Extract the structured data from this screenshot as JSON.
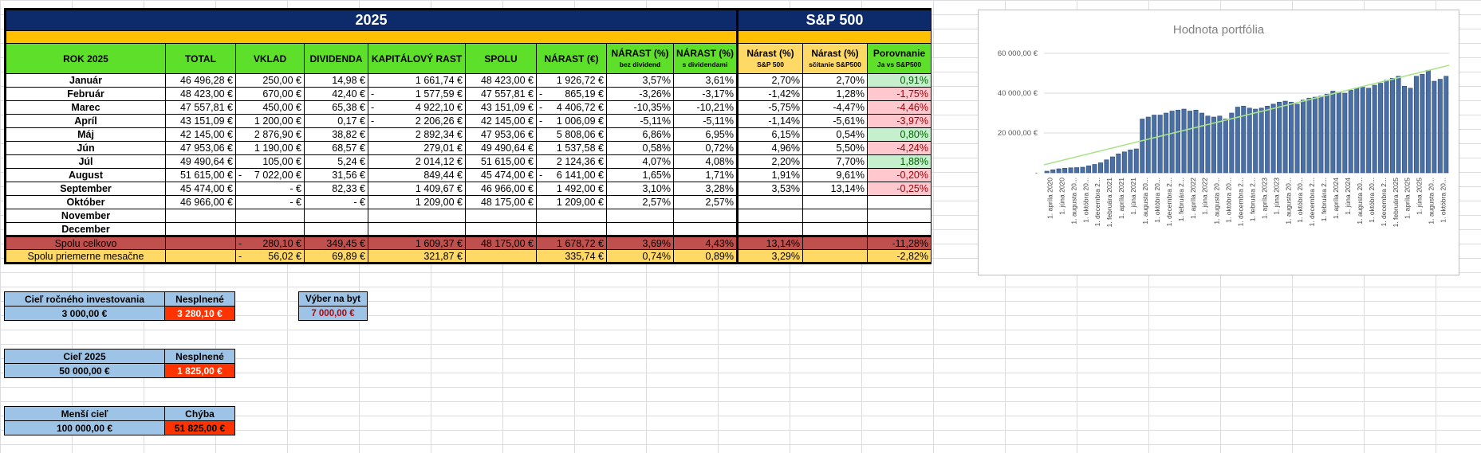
{
  "header": {
    "year_title": "2025",
    "sp_title": "S&P 500"
  },
  "columns": {
    "rok": "ROK 2025",
    "total": "TOTAL",
    "vklad": "VKLAD",
    "dividenda": "DIVIDENDA",
    "kap": "KAPITÁLOVÝ RAST",
    "spolu": "SPOLU",
    "narast_eur": "NÁRAST (€)",
    "narast_bez": "NÁRAST (%)",
    "narast_bez_sub": "bez dividend",
    "narast_s": "NÁRAST (%)",
    "narast_s_sub": "s dividendami",
    "sp_narast": "Nárast (%)",
    "sp_narast_sub": "S&P 500",
    "sp_scitanie": "Nárast (%)",
    "sp_scitanie_sub": "sčítanie S&P500",
    "porovnanie": "Porovnanie",
    "porovnanie_sub": "Ja vs  S&P500"
  },
  "rows": [
    {
      "m": "Január",
      "total": "46 496,28 €",
      "vklad": "250,00 €",
      "vd": "",
      "div": "14,98 €",
      "kd": "",
      "kap": "1 661,74 €",
      "spolu": "48 423,00 €",
      "nd": "",
      "nar": "1 926,72 €",
      "p1": "3,57%",
      "p2": "3,61%",
      "sp1": "2,70%",
      "sp2": "2,70%",
      "por": "0,91%",
      "pc": "posg"
    },
    {
      "m": "Február",
      "total": "48 423,00 €",
      "vklad": "670,00 €",
      "vd": "",
      "div": "42,40 €",
      "kd": "-",
      "kap": "1 577,59 €",
      "spolu": "47 557,81 €",
      "nd": "-",
      "nar": "865,19 €",
      "p1": "-3,26%",
      "p2": "-3,17%",
      "sp1": "-1,42%",
      "sp2": "1,28%",
      "por": "-1,75%",
      "pc": "negr"
    },
    {
      "m": "Marec",
      "total": "47 557,81 €",
      "vklad": "450,00 €",
      "vd": "",
      "div": "65,38 €",
      "kd": "-",
      "kap": "4 922,10 €",
      "spolu": "43 151,09 €",
      "nd": "-",
      "nar": "4 406,72 €",
      "p1": "-10,35%",
      "p2": "-10,21%",
      "sp1": "-5,75%",
      "sp2": "-4,47%",
      "por": "-4,46%",
      "pc": "negr"
    },
    {
      "m": "Apríl",
      "total": "43 151,09 €",
      "vklad": "1 200,00 €",
      "vd": "",
      "div": "0,17 €",
      "kd": "-",
      "kap": "2 206,26 €",
      "spolu": "42 145,00 €",
      "nd": "-",
      "nar": "1 006,09 €",
      "p1": "-5,11%",
      "p2": "-5,11%",
      "sp1": "-1,14%",
      "sp2": "-5,61%",
      "por": "-3,97%",
      "pc": "negr"
    },
    {
      "m": "Máj",
      "total": "42 145,00 €",
      "vklad": "2 876,90 €",
      "vd": "",
      "div": "38,82 €",
      "kd": "",
      "kap": "2 892,34 €",
      "spolu": "47 953,06 €",
      "nd": "",
      "nar": "5 808,06 €",
      "p1": "6,86%",
      "p2": "6,95%",
      "sp1": "6,15%",
      "sp2": "0,54%",
      "por": "0,80%",
      "pc": "posg"
    },
    {
      "m": "Jún",
      "total": "47 953,06 €",
      "vklad": "1 190,00 €",
      "vd": "",
      "div": "68,57 €",
      "kd": "",
      "kap": "279,01 €",
      "spolu": "49 490,64 €",
      "nd": "",
      "nar": "1 537,58 €",
      "p1": "0,58%",
      "p2": "0,72%",
      "sp1": "4,96%",
      "sp2": "5,50%",
      "por": "-4,24%",
      "pc": "negr"
    },
    {
      "m": "Júl",
      "total": "49 490,64 €",
      "vklad": "105,00 €",
      "vd": "",
      "div": "5,24 €",
      "kd": "",
      "kap": "2 014,12 €",
      "spolu": "51 615,00 €",
      "nd": "",
      "nar": "2 124,36 €",
      "p1": "4,07%",
      "p2": "4,08%",
      "sp1": "2,20%",
      "sp2": "7,70%",
      "por": "1,88%",
      "pc": "posg"
    },
    {
      "m": "August",
      "total": "51 615,00 €",
      "vklad": "7 022,00 €",
      "vd": "-",
      "div": "31,56 €",
      "kd": "",
      "kap": "849,44 €",
      "spolu": "45 474,00 €",
      "nd": "-",
      "nar": "6 141,00 €",
      "p1": "1,65%",
      "p2": "1,71%",
      "sp1": "1,91%",
      "sp2": "9,61%",
      "por": "-0,20%",
      "pc": "negr"
    },
    {
      "m": "September",
      "total": "45 474,00 €",
      "vklad": "-    €",
      "vd": "",
      "div": "82,33 €",
      "kd": "",
      "kap": "1 409,67 €",
      "spolu": "46 966,00 €",
      "nd": "",
      "nar": "1 492,00 €",
      "p1": "3,10%",
      "p2": "3,28%",
      "sp1": "3,53%",
      "sp2": "13,14%",
      "por": "-0,25%",
      "pc": "negr"
    },
    {
      "m": "Október",
      "total": "46 966,00 €",
      "vklad": "-    €",
      "vd": "",
      "div": "-    €",
      "kd": "",
      "kap": "1 209,00 €",
      "spolu": "48 175,00 €",
      "nd": "",
      "nar": "1 209,00 €",
      "p1": "2,57%",
      "p2": "2,57%",
      "sp1": "",
      "sp2": "",
      "por": "",
      "pc": ""
    },
    {
      "m": "November",
      "total": "",
      "vklad": "",
      "vd": "",
      "div": "",
      "kd": "",
      "kap": "",
      "spolu": "",
      "nd": "",
      "nar": "",
      "p1": "",
      "p2": "",
      "sp1": "",
      "sp2": "",
      "por": "",
      "pc": ""
    },
    {
      "m": "December",
      "total": "",
      "vklad": "",
      "vd": "",
      "div": "",
      "kd": "",
      "kap": "",
      "spolu": "",
      "nd": "",
      "nar": "",
      "p1": "",
      "p2": "",
      "sp1": "",
      "sp2": "",
      "por": "",
      "pc": ""
    }
  ],
  "totals": {
    "label": "Spolu celkovo",
    "vd": "-",
    "vklad": "280,10 €",
    "div": "349,45 €",
    "kap": "1 609,37 €",
    "spolu": "48 175,00 €",
    "nar": "1 678,72 €",
    "p1": "3,69%",
    "p2": "4,43%",
    "sp1": "13,14%",
    "por": "-11,28%"
  },
  "averages": {
    "label": "Spolu priemerne mesačne",
    "vd": "-",
    "vklad": "56,02 €",
    "div": "69,89 €",
    "kap": "321,87 €",
    "nar": "335,74 €",
    "p1": "0,74%",
    "p2": "0,89%",
    "sp1": "3,29%",
    "por": "-2,82%"
  },
  "goals": [
    {
      "label": "Cieľ ročného investovania",
      "status": "Nesplnené",
      "value": "3 000,00 €",
      "remaining": "3 280,10 €"
    },
    {
      "label": "Cieľ 2025",
      "status": "Nesplnené",
      "value": "50 000,00 €",
      "remaining": "1 825,00 €"
    },
    {
      "label": "Menší cieľ",
      "status": "Chýba",
      "value": "100 000,00 €",
      "remaining": "51 825,00 €"
    }
  ],
  "vyber": {
    "label": "Výber na byt",
    "value": "7 000,00 €"
  },
  "chart_data": {
    "type": "bar",
    "title": "Hodnota portfólia",
    "ylim": [
      0,
      60000
    ],
    "yticks": [
      "-",
      "20 000,00 €",
      "40 000,00 €",
      "60 000,00 €"
    ],
    "xticks": [
      "1. apríla 2020",
      "1. júna 2020",
      "1. augusta 20...",
      "1. októbra 20...",
      "1. decembra 2...",
      "1. februára 2021",
      "1. apríla 2021",
      "1. júna 2021",
      "1. augusta 20...",
      "1. októbra 20...",
      "1. decembra 2...",
      "1. februára 2...",
      "1. apríla 2022",
      "1. júna 2022",
      "1. augusta 20...",
      "1. októbra 20...",
      "1. decembra 2...",
      "1. februára 2...",
      "1. apríla 2023",
      "1. júna 2023",
      "1. augusta 20...",
      "1. októbra 20...",
      "1. decembra 2...",
      "1. februára 2...",
      "1. apríla 2024",
      "1. júna 2024",
      "1. augusta 20...",
      "1. októbra 20...",
      "1. decembra 2...",
      "1. februára 2025",
      "1. apríla 2025",
      "1. júna 2025",
      "1. augusta 20...",
      "1. októbra 20..."
    ],
    "values": [
      800,
      1500,
      2000,
      2300,
      2500,
      2600,
      2800,
      3500,
      4200,
      5000,
      6500,
      8000,
      9500,
      10500,
      11500,
      12000,
      27000,
      28000,
      29000,
      29000,
      30000,
      31000,
      31500,
      32000,
      31000,
      31500,
      30000,
      28500,
      28000,
      28500,
      27000,
      30000,
      33000,
      33500,
      32500,
      32000,
      32500,
      33500,
      34500,
      35500,
      36000,
      35500,
      34500,
      36500,
      37500,
      38000,
      38500,
      39500,
      41000,
      40500,
      40000,
      41500,
      42500,
      43000,
      42500,
      44000,
      45000,
      46500,
      47500,
      48500,
      43500,
      42500,
      48500,
      49500,
      51500,
      46000,
      47000,
      48500
    ],
    "trend": [
      4000,
      54000
    ],
    "grid": true
  }
}
